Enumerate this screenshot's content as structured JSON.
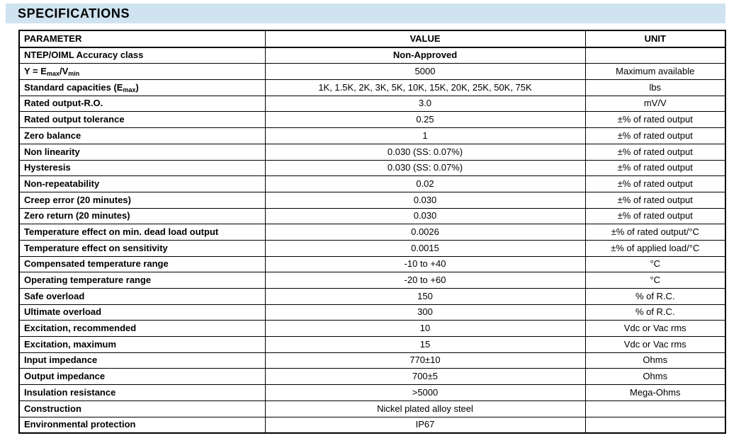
{
  "page": {
    "title": "SPECIFICATIONS"
  },
  "colors": {
    "title_band_bg": "#cfe3f1",
    "table_border": "#000000",
    "text": "#000000",
    "page_bg": "#ffffff"
  },
  "table": {
    "columns": [
      {
        "label": "PARAMETER",
        "align": "left"
      },
      {
        "label": "VALUE",
        "align": "center"
      },
      {
        "label": "UNIT",
        "align": "center"
      }
    ],
    "rows": [
      {
        "parameter": "NTEP/OIML Accuracy class",
        "value": "Non-Approved",
        "value_bold": true,
        "unit": ""
      },
      {
        "parameter": "Y = E_{max}/V_{min}",
        "value": "5000",
        "unit": "Maximum available"
      },
      {
        "parameter": "Standard capacities (E_{max})",
        "value": "1K, 1.5K, 2K, 3K, 5K, 10K, 15K, 20K, 25K, 50K, 75K",
        "unit": "lbs"
      },
      {
        "parameter": "Rated output-R.O.",
        "value": "3.0",
        "unit": "mV/V"
      },
      {
        "parameter": "Rated output tolerance",
        "value": "0.25",
        "unit": "±% of rated output"
      },
      {
        "parameter": "Zero balance",
        "value": "1",
        "unit": "±% of rated output"
      },
      {
        "parameter": "Non linearity",
        "value": "0.030 (SS: 0.07%)",
        "unit": "±% of rated output"
      },
      {
        "parameter": "Hysteresis",
        "value": "0.030 (SS: 0.07%)",
        "unit": "±% of rated output"
      },
      {
        "parameter": "Non-repeatability",
        "value": "0.02",
        "unit": "±% of rated output"
      },
      {
        "parameter": "Creep error (20 minutes)",
        "value": "0.030",
        "unit": "±% of rated output"
      },
      {
        "parameter": "Zero return (20 minutes)",
        "value": "0.030",
        "unit": "±% of rated output"
      },
      {
        "parameter": "Temperature effect on min. dead load output",
        "value": "0.0026",
        "unit": "±% of rated output/°C"
      },
      {
        "parameter": "Temperature effect on sensitivity",
        "value": "0.0015",
        "unit": "±% of applied load/°C"
      },
      {
        "parameter": "Compensated temperature range",
        "value": "-10 to +40",
        "unit": "°C"
      },
      {
        "parameter": "Operating temperature range",
        "value": "-20 to +60",
        "unit": "°C"
      },
      {
        "parameter": "Safe overload",
        "value": "150",
        "unit": "% of R.C."
      },
      {
        "parameter": "Ultimate overload",
        "value": "300",
        "unit": "% of R.C."
      },
      {
        "parameter": "Excitation, recommended",
        "value": "10",
        "unit": "Vdc or Vac rms"
      },
      {
        "parameter": "Excitation, maximum",
        "value": "15",
        "unit": "Vdc or Vac rms"
      },
      {
        "parameter": "Input impedance",
        "value": "770±10",
        "unit": "Ohms"
      },
      {
        "parameter": "Output impedance",
        "value": "700±5",
        "unit": "Ohms"
      },
      {
        "parameter": "Insulation resistance",
        "value": ">5000",
        "unit": "Mega-Ohms"
      },
      {
        "parameter": "Construction",
        "value": "Nickel plated alloy steel",
        "unit": ""
      },
      {
        "parameter": "Environmental protection",
        "value": "IP67",
        "unit": ""
      }
    ]
  }
}
